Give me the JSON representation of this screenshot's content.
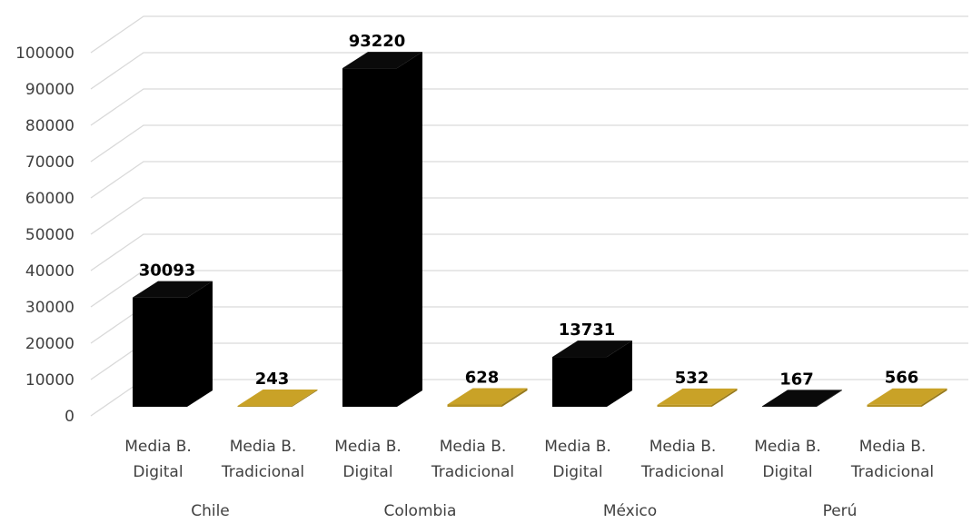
{
  "chart_data": {
    "type": "bar",
    "style": "3d-column",
    "groups": [
      "Chile",
      "Colombia",
      "México",
      "Perú"
    ],
    "categories": [
      [
        "Media B.",
        "Digital"
      ],
      [
        "Media B.",
        "Tradicional"
      ]
    ],
    "values": [
      [
        30093,
        243
      ],
      [
        93220,
        628
      ],
      [
        13731,
        532
      ],
      [
        167,
        566
      ]
    ],
    "data_labels": [
      [
        "30093",
        "243"
      ],
      [
        "93220",
        "628"
      ],
      [
        "13731",
        "532"
      ],
      [
        "167",
        "566"
      ]
    ],
    "colors": [
      "#000000",
      "#C9A227"
    ],
    "ylim": [
      0,
      110000
    ],
    "yticks": [
      0,
      10000,
      20000,
      30000,
      40000,
      50000,
      60000,
      70000,
      80000,
      90000,
      100000
    ],
    "grid": true,
    "legend": "none",
    "title": "",
    "xlabel": "",
    "ylabel": ""
  }
}
